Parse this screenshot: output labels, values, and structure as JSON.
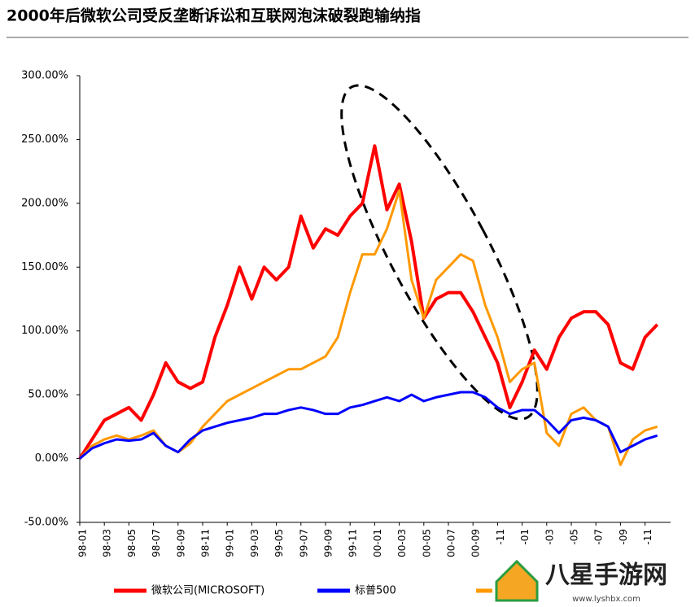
{
  "chart_data": {
    "type": "line",
    "title": "2000年后微软公司受反垄断诉讼和互联网泡沫破裂跑输纳指",
    "categories": [
      "98-01",
      null,
      "98-03",
      null,
      "98-05",
      null,
      "98-07",
      null,
      "98-09",
      null,
      "98-11",
      null,
      "99-01",
      null,
      "99-03",
      null,
      "99-05",
      null,
      "99-07",
      null,
      "99-09",
      null,
      "99-11",
      null,
      "00-01",
      null,
      "00-03",
      null,
      "00-05",
      null,
      "00-07",
      null,
      "00-09",
      null,
      "-11",
      null,
      "-01",
      null,
      "-03",
      null,
      "-05",
      null,
      "-07",
      null,
      "-09",
      null,
      "-11",
      null
    ],
    "series": [
      {
        "name": "微软公司(MICROSOFT)",
        "color": "#ff0000",
        "values": [
          0,
          15,
          30,
          35,
          40,
          30,
          50,
          75,
          60,
          55,
          60,
          95,
          120,
          150,
          125,
          150,
          140,
          150,
          190,
          165,
          180,
          175,
          190,
          200,
          245,
          195,
          215,
          170,
          110,
          125,
          130,
          130,
          115,
          95,
          75,
          40,
          60,
          85,
          70,
          95,
          110,
          115,
          115,
          105,
          75,
          70,
          95,
          105
        ]
      },
      {
        "name": "标普500",
        "color": "#0000ff",
        "values": [
          0,
          8,
          12,
          15,
          14,
          15,
          20,
          10,
          5,
          15,
          22,
          25,
          28,
          30,
          32,
          35,
          35,
          38,
          40,
          38,
          35,
          35,
          40,
          42,
          45,
          48,
          45,
          50,
          45,
          48,
          50,
          52,
          52,
          48,
          40,
          35,
          38,
          38,
          30,
          20,
          30,
          32,
          30,
          25,
          5,
          10,
          15,
          18
        ]
      },
      {
        "color": "#ff9900",
        "values": [
          0,
          10,
          15,
          18,
          15,
          18,
          22,
          10,
          5,
          12,
          25,
          35,
          45,
          50,
          55,
          60,
          65,
          70,
          70,
          75,
          80,
          95,
          130,
          160,
          160,
          180,
          210,
          140,
          110,
          140,
          150,
          160,
          155,
          120,
          95,
          60,
          70,
          75,
          20,
          10,
          35,
          40,
          30,
          25,
          -5,
          15,
          22,
          25
        ]
      }
    ],
    "ylim": [
      -50,
      300
    ],
    "yticks": [
      {
        "value": -50,
        "label": "-50.00%"
      },
      {
        "value": 0,
        "label": "0.00%"
      },
      {
        "value": 50,
        "label": "50.00%"
      },
      {
        "value": 100,
        "label": "100.00%"
      },
      {
        "value": 150,
        "label": "150.00%"
      },
      {
        "value": 200,
        "label": "200.00%"
      },
      {
        "value": 250,
        "label": "250.00%"
      },
      {
        "value": 300,
        "label": "300.00%"
      }
    ],
    "watermark": "八星手游网",
    "watermark_url": "www.lyshbx.com"
  }
}
